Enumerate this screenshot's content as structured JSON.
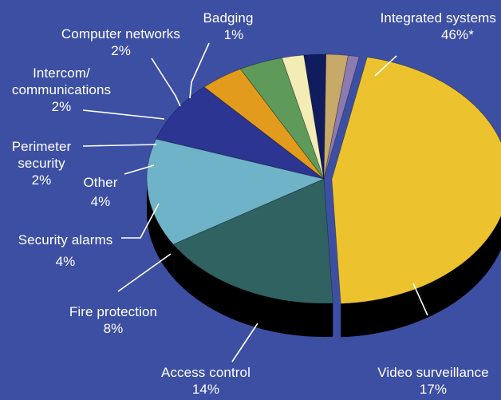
{
  "chart_data": {
    "type": "pie",
    "style": "3d-exploded-slice",
    "background": "#3d4fa3",
    "label_color": "#ffffff",
    "slices": [
      {
        "label": "Integrated systems",
        "value": 46,
        "value_label": "46%*",
        "color": "#ecc32e",
        "side": "#8c6e0f"
      },
      {
        "label": "Video surveillance",
        "value": 17,
        "value_label": "17%",
        "color": "#2f6260",
        "side": "#143130"
      },
      {
        "label": "Access control",
        "value": 14,
        "value_label": "14%",
        "color": "#6fb3c8",
        "side": "#2d5f6e"
      },
      {
        "label": "Fire protection",
        "value": 8,
        "value_label": "8%",
        "color": "#2c3592",
        "side": "#12163f"
      },
      {
        "label": "Security alarms",
        "value": 4,
        "value_label": "4%",
        "color": "#e39b1d",
        "side": "#7a4f0a"
      },
      {
        "label": "Other",
        "value": 4,
        "value_label": "4%",
        "color": "#5e9a5a",
        "side": "#2b4a29"
      },
      {
        "label": "Perimeter security",
        "value": 2,
        "value_label": "2%",
        "color": "#f3ecb5",
        "side": "#8f8860"
      },
      {
        "label": "Intercom/ communications",
        "value": 2,
        "value_label": "2%",
        "color": "#101c5e",
        "side": "#060b28"
      },
      {
        "label": "Computer networks",
        "value": 2,
        "value_label": "2%",
        "color": "#c7a96a",
        "side": "#6a5632"
      },
      {
        "label": "Badging",
        "value": 1,
        "value_label": "1%",
        "color": "#8b7bb0",
        "side": "#453a60"
      }
    ],
    "labels": {
      "integrated": {
        "name": "Integrated systems",
        "pct": "46%*"
      },
      "video": {
        "name": "Video surveillance",
        "pct": "17%"
      },
      "access": {
        "name": "Access control",
        "pct": "14%"
      },
      "fire": {
        "name": "Fire protection",
        "pct": "8%"
      },
      "alarms": {
        "name": "Security alarms",
        "pct": "4%"
      },
      "other": {
        "name": "Other",
        "pct": "4%"
      },
      "perimeter": {
        "name1": "Perimeter",
        "name2": "security",
        "pct": "2%"
      },
      "intercom": {
        "name1": "Intercom/",
        "name2": "communications",
        "pct": "2%"
      },
      "networks": {
        "name": "Computer networks",
        "pct": "2%"
      },
      "badging": {
        "name": "Badging",
        "pct": "1%"
      }
    }
  }
}
